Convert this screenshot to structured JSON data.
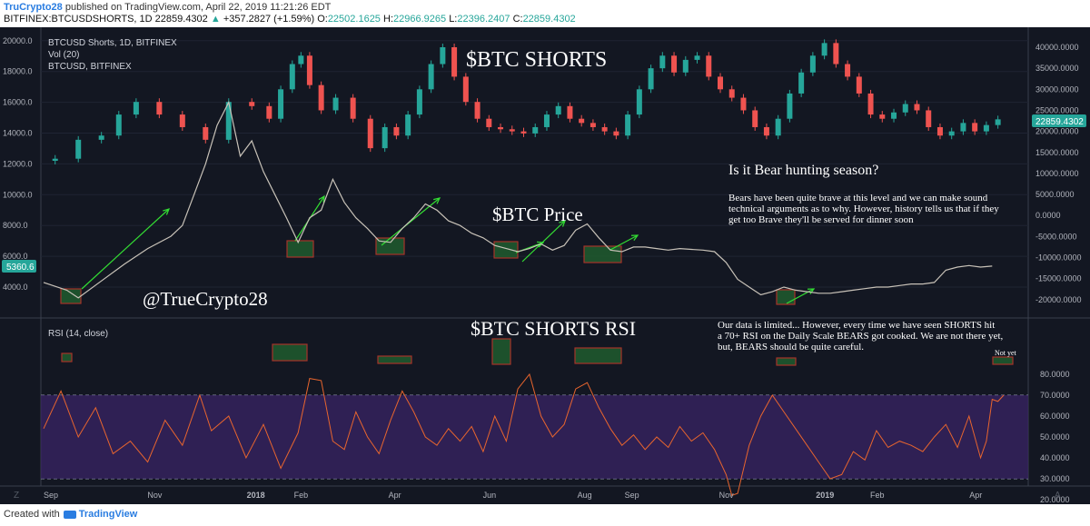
{
  "header": {
    "user": "TruCrypto28",
    "published": "published on TradingView.com, April 22, 2019 11:21:26 EDT",
    "symbol": "BITFINEX:BTCUSDSHORTS, 1D",
    "last": "22859.4302",
    "change": "+357.2827 (+1.59%)",
    "open_label": "O:",
    "open": "22502.1625",
    "high_label": "H:",
    "high": "22966.9265",
    "low_label": "L:",
    "low": "22396.2407",
    "close_label": "C:",
    "close": "22859.4302"
  },
  "legend": {
    "line1": "BTCUSD Shorts, 1D, BITFINEX",
    "line2": "Vol (20)",
    "line3": "BTCUSD, BITFINEX",
    "rsi": "RSI (14, close)"
  },
  "annotations": {
    "shorts_title": "$BTC SHORTS",
    "price_title": "$BTC Price",
    "rsi_title": "$BTC SHORTS RSI",
    "handle": "@TrueCrypto28",
    "question": "Is it Bear hunting season?",
    "para1_l1": "Bears have been quite brave at this level and we can make sound",
    "para1_l2": "technical arguments as to why. However, history tells us that if they",
    "para1_l3": "get too Brave they'll be served for dinner soon",
    "para2_l1": "Our data is limited... However, every time we have seen SHORTS hit",
    "para2_l2": "a 70+ RSI on the Daily Scale BEARS got cooked. We are not there yet,",
    "para2_l3": "but, BEARS should be quite careful.",
    "not_yet": "Not yet"
  },
  "footer": {
    "created": "Created with",
    "brand": "TradingView"
  },
  "colors": {
    "background": "#131722",
    "up": "#26a69a",
    "down": "#ef5350",
    "rsi_line": "#e8652e",
    "rsi_band": "#3a2466",
    "box_fill": "#1f5c2e",
    "box_stroke": "#c0392b",
    "arrow": "#33dd33",
    "label_text": "#ffffff"
  },
  "chart_data": {
    "type": "candlestick",
    "x_ticks": [
      "Sep",
      "Nov",
      "2018",
      "Feb",
      "Apr",
      "Jun",
      "Aug",
      "Sep",
      "Nov",
      "2019",
      "Feb",
      "Apr"
    ],
    "left_axis_ticks": [
      "20000.0",
      "18000.0",
      "16000.0",
      "14000.0",
      "12000.0",
      "10000.0",
      "8000.0",
      "6000.0",
      "4000.0"
    ],
    "right_axis_ticks": [
      "40000.0000",
      "35000.0000",
      "30000.0000",
      "25000.0000",
      "20000.0000",
      "15000.0000",
      "10000.0000",
      "5000.0000",
      "0.0000",
      "-5000.0000",
      "-10000.0000",
      "-15000.0000",
      "-20000.0000"
    ],
    "rsi_axis_ticks": [
      "80.0000",
      "70.0000",
      "60.0000",
      "50.0000",
      "40.0000",
      "30.0000",
      "20.0000"
    ],
    "price_label": "5360.6",
    "shorts_label": "22859.4302",
    "rsi_levels": [
      70,
      30
    ],
    "series": [
      {
        "name": "BTCUSD Shorts",
        "axis": "right",
        "points": [
          [
            0,
            13000
          ],
          [
            4,
            13500
          ],
          [
            8,
            18000
          ],
          [
            12,
            19000
          ],
          [
            14,
            24000
          ],
          [
            18,
            27000
          ],
          [
            22,
            24000
          ],
          [
            26,
            21000
          ],
          [
            30,
            18000
          ],
          [
            34,
            27000
          ],
          [
            38,
            26000
          ],
          [
            40,
            23000
          ],
          [
            42,
            30000
          ],
          [
            44,
            36000
          ],
          [
            45,
            38000
          ],
          [
            47,
            31000
          ],
          [
            49,
            25000
          ],
          [
            52,
            28000
          ],
          [
            55,
            23000
          ],
          [
            58,
            16000
          ],
          [
            60,
            21000
          ],
          [
            62,
            19000
          ],
          [
            64,
            24000
          ],
          [
            66,
            30000
          ],
          [
            68,
            36000
          ],
          [
            70,
            40000
          ],
          [
            72,
            33000
          ],
          [
            74,
            27000
          ],
          [
            76,
            23000
          ],
          [
            78,
            21000
          ],
          [
            80,
            20500
          ],
          [
            82,
            20000
          ],
          [
            84,
            19500
          ],
          [
            86,
            21000
          ],
          [
            88,
            24000
          ],
          [
            90,
            26000
          ],
          [
            92,
            23000
          ],
          [
            94,
            22000
          ],
          [
            96,
            21000
          ],
          [
            98,
            20000
          ],
          [
            100,
            19000
          ],
          [
            102,
            24000
          ],
          [
            104,
            30000
          ],
          [
            106,
            35000
          ],
          [
            108,
            38000
          ],
          [
            110,
            34000
          ],
          [
            112,
            37000
          ],
          [
            114,
            38000
          ],
          [
            116,
            33000
          ],
          [
            118,
            30000
          ],
          [
            120,
            28000
          ],
          [
            122,
            25000
          ],
          [
            124,
            21000
          ],
          [
            126,
            19000
          ],
          [
            128,
            23000
          ],
          [
            130,
            29000
          ],
          [
            132,
            34000
          ],
          [
            134,
            38000
          ],
          [
            136,
            41000
          ],
          [
            138,
            36000
          ],
          [
            140,
            33000
          ],
          [
            142,
            29000
          ],
          [
            144,
            24000
          ],
          [
            146,
            23000
          ],
          [
            148,
            24500
          ],
          [
            150,
            26500
          ],
          [
            152,
            25000
          ],
          [
            154,
            21000
          ],
          [
            156,
            19000
          ],
          [
            158,
            20000
          ],
          [
            160,
            22000
          ],
          [
            162,
            20000
          ],
          [
            164,
            21500
          ],
          [
            166,
            22859
          ]
        ]
      },
      {
        "name": "BTCUSD",
        "axis": "left",
        "points": [
          [
            0,
            4300
          ],
          [
            4,
            3800
          ],
          [
            6,
            3300
          ],
          [
            10,
            4400
          ],
          [
            14,
            5500
          ],
          [
            18,
            6500
          ],
          [
            22,
            7300
          ],
          [
            24,
            8000
          ],
          [
            26,
            10000
          ],
          [
            28,
            12000
          ],
          [
            30,
            14500
          ],
          [
            32,
            16000
          ],
          [
            34,
            12500
          ],
          [
            36,
            13500
          ],
          [
            38,
            11500
          ],
          [
            40,
            10000
          ],
          [
            42,
            8500
          ],
          [
            44,
            6900
          ],
          [
            46,
            8500
          ],
          [
            48,
            9000
          ],
          [
            50,
            11000
          ],
          [
            52,
            9500
          ],
          [
            54,
            8500
          ],
          [
            56,
            7800
          ],
          [
            58,
            7000
          ],
          [
            60,
            6900
          ],
          [
            62,
            7800
          ],
          [
            64,
            8500
          ],
          [
            66,
            9400
          ],
          [
            68,
            9000
          ],
          [
            70,
            8300
          ],
          [
            72,
            8000
          ],
          [
            74,
            7500
          ],
          [
            76,
            7200
          ],
          [
            78,
            6700
          ],
          [
            80,
            6500
          ],
          [
            82,
            6300
          ],
          [
            84,
            6500
          ],
          [
            86,
            6800
          ],
          [
            88,
            6400
          ],
          [
            90,
            6700
          ],
          [
            92,
            7700
          ],
          [
            94,
            8100
          ],
          [
            96,
            7200
          ],
          [
            98,
            6400
          ],
          [
            100,
            6300
          ],
          [
            102,
            6600
          ],
          [
            104,
            6600
          ],
          [
            106,
            6500
          ],
          [
            108,
            6400
          ],
          [
            110,
            6500
          ],
          [
            112,
            6450
          ],
          [
            114,
            6400
          ],
          [
            116,
            6300
          ],
          [
            118,
            5600
          ],
          [
            120,
            4500
          ],
          [
            122,
            4000
          ],
          [
            124,
            3500
          ],
          [
            126,
            3700
          ],
          [
            128,
            4000
          ],
          [
            130,
            3800
          ],
          [
            132,
            3700
          ],
          [
            134,
            3600
          ],
          [
            136,
            3600
          ],
          [
            138,
            3700
          ],
          [
            140,
            3800
          ],
          [
            142,
            3900
          ],
          [
            144,
            4000
          ],
          [
            146,
            4000
          ],
          [
            148,
            4100
          ],
          [
            150,
            4200
          ],
          [
            152,
            4200
          ],
          [
            154,
            4300
          ],
          [
            156,
            5100
          ],
          [
            158,
            5300
          ],
          [
            160,
            5400
          ],
          [
            162,
            5300
          ],
          [
            164,
            5360
          ]
        ]
      },
      {
        "name": "RSI (14, close)",
        "axis": "rsi",
        "points": [
          [
            0,
            54
          ],
          [
            3,
            72
          ],
          [
            6,
            50
          ],
          [
            9,
            64
          ],
          [
            12,
            42
          ],
          [
            15,
            48
          ],
          [
            18,
            38
          ],
          [
            21,
            58
          ],
          [
            24,
            46
          ],
          [
            27,
            70
          ],
          [
            29,
            53
          ],
          [
            32,
            60
          ],
          [
            35,
            40
          ],
          [
            38,
            56
          ],
          [
            41,
            35
          ],
          [
            44,
            52
          ],
          [
            46,
            78
          ],
          [
            48,
            77
          ],
          [
            50,
            48
          ],
          [
            52,
            44
          ],
          [
            54,
            62
          ],
          [
            56,
            50
          ],
          [
            58,
            42
          ],
          [
            60,
            58
          ],
          [
            62,
            72
          ],
          [
            64,
            62
          ],
          [
            66,
            50
          ],
          [
            68,
            46
          ],
          [
            70,
            54
          ],
          [
            72,
            48
          ],
          [
            74,
            55
          ],
          [
            76,
            43
          ],
          [
            78,
            60
          ],
          [
            80,
            48
          ],
          [
            82,
            73
          ],
          [
            84,
            80
          ],
          [
            86,
            60
          ],
          [
            88,
            50
          ],
          [
            90,
            56
          ],
          [
            92,
            73
          ],
          [
            94,
            76
          ],
          [
            96,
            64
          ],
          [
            98,
            54
          ],
          [
            100,
            46
          ],
          [
            102,
            51
          ],
          [
            104,
            44
          ],
          [
            106,
            50
          ],
          [
            108,
            45
          ],
          [
            110,
            55
          ],
          [
            112,
            48
          ],
          [
            114,
            52
          ],
          [
            116,
            44
          ],
          [
            118,
            32
          ],
          [
            119,
            22
          ],
          [
            120,
            23
          ],
          [
            122,
            46
          ],
          [
            124,
            60
          ],
          [
            126,
            70
          ],
          [
            128,
            62
          ],
          [
            130,
            54
          ],
          [
            132,
            46
          ],
          [
            134,
            38
          ],
          [
            136,
            30
          ],
          [
            138,
            32
          ],
          [
            140,
            43
          ],
          [
            142,
            39
          ],
          [
            144,
            53
          ],
          [
            146,
            45
          ],
          [
            148,
            48
          ],
          [
            150,
            46
          ],
          [
            152,
            43
          ],
          [
            154,
            50
          ],
          [
            156,
            56
          ],
          [
            158,
            45
          ],
          [
            160,
            60
          ],
          [
            162,
            40
          ],
          [
            163,
            48
          ],
          [
            164,
            68
          ],
          [
            165,
            67
          ],
          [
            166,
            70
          ]
        ]
      }
    ]
  }
}
